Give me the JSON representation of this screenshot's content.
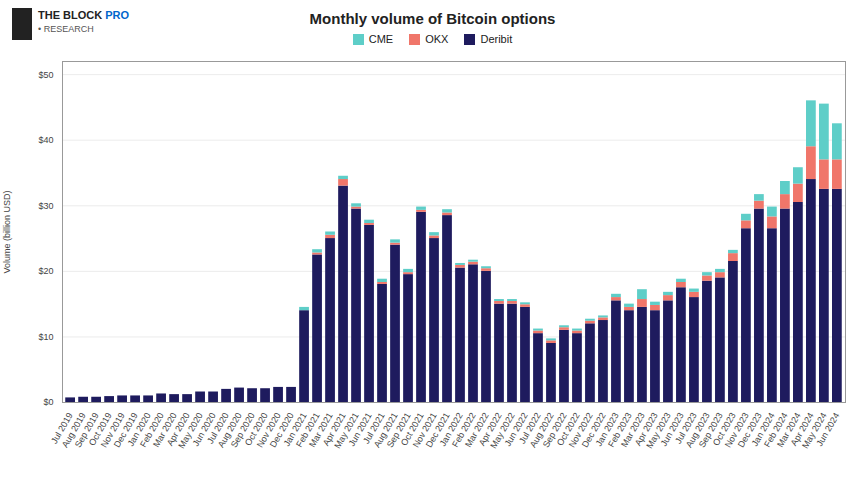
{
  "chart_data": {
    "type": "bar",
    "title": "Monthly volume of Bitcoin options",
    "ylabel": "Volume (billion USD)",
    "annotations": [
      "THE BLOCK",
      "PRO",
      "• RESEARCH"
    ],
    "stacked": true,
    "grid": true,
    "legend": "top",
    "ylim": [
      0,
      52
    ],
    "yticks": [
      {
        "value": 0,
        "label": "$0"
      },
      {
        "value": 10,
        "label": "$10"
      },
      {
        "value": 20,
        "label": "$20"
      },
      {
        "value": 30,
        "label": "$30"
      },
      {
        "value": 40,
        "label": "$40"
      },
      {
        "value": 50,
        "label": "$50"
      }
    ],
    "categories": [
      "Jul 2019",
      "Aug 2019",
      "Sep 2019",
      "Oct 2019",
      "Nov 2019",
      "Dec 2019",
      "Jan 2020",
      "Feb 2020",
      "Mar 2020",
      "Apr 2020",
      "May 2020",
      "Jun 2020",
      "Jul 2020",
      "Aug 2020",
      "Sep 2020",
      "Oct 2020",
      "Nov 2020",
      "Dec 2020",
      "Jan 2021",
      "Feb 2021",
      "Mar 2021",
      "Apr 2021",
      "May 2021",
      "Jun 2021",
      "Jul 2021",
      "Aug 2021",
      "Sep 2021",
      "Oct 2021",
      "Nov 2021",
      "Dec 2021",
      "Jan 2022",
      "Feb 2022",
      "Mar 2022",
      "Apr 2022",
      "May 2022",
      "Jun 2022",
      "Jul 2022",
      "Aug 2022",
      "Sep 2022",
      "Oct 2022",
      "Nov 2022",
      "Dec 2022",
      "Jan 2023",
      "Feb 2023",
      "Mar 2023",
      "Apr 2023",
      "May 2023",
      "Jun 2023",
      "Jul 2023",
      "Aug 2023",
      "Sep 2023",
      "Oct 2023",
      "Nov 2023",
      "Dec 2023",
      "Jan 2024",
      "Feb 2024",
      "Mar 2024",
      "Apr 2024",
      "May 2024",
      "Jun 2024"
    ],
    "series": [
      {
        "name": "Deribit",
        "color": "#1e1b5e",
        "values": [
          0.7,
          0.8,
          0.8,
          0.9,
          1.0,
          1.0,
          1.0,
          1.3,
          1.2,
          1.2,
          1.6,
          1.6,
          2.0,
          2.2,
          2.1,
          2.1,
          2.3,
          2.3,
          14.0,
          22.5,
          25.0,
          33.0,
          29.5,
          27.0,
          18.0,
          24.0,
          19.5,
          29.0,
          25.0,
          28.5,
          20.5,
          21.0,
          20.0,
          15.0,
          15.0,
          14.5,
          10.5,
          9.0,
          11.0,
          10.5,
          12.0,
          12.5,
          15.5,
          14.0,
          14.5,
          14.0,
          15.5,
          17.5,
          16.0,
          18.5,
          19.0,
          21.5,
          26.5,
          29.5,
          26.5,
          29.5,
          30.5,
          34.0,
          32.5,
          32.5
        ]
      },
      {
        "name": "OKX",
        "color": "#f0766a",
        "values": [
          0.0,
          0.0,
          0.0,
          0.0,
          0.0,
          0.0,
          0.0,
          0.0,
          0.0,
          0.0,
          0.0,
          0.0,
          0.0,
          0.0,
          0.0,
          0.0,
          0.0,
          0.0,
          0.0,
          0.3,
          0.5,
          1.0,
          0.3,
          0.3,
          0.3,
          0.3,
          0.3,
          0.3,
          0.4,
          0.4,
          0.4,
          0.4,
          0.4,
          0.4,
          0.4,
          0.4,
          0.4,
          0.4,
          0.4,
          0.4,
          0.4,
          0.4,
          0.5,
          0.5,
          1.2,
          0.8,
          0.8,
          0.8,
          0.8,
          0.8,
          0.8,
          1.2,
          1.2,
          1.2,
          1.8,
          2.2,
          2.8,
          5.0,
          4.5,
          4.5
        ]
      },
      {
        "name": "CME",
        "color": "#5ecec8",
        "values": [
          0.0,
          0.0,
          0.0,
          0.0,
          0.0,
          0.0,
          0.0,
          0.0,
          0.0,
          0.0,
          0.0,
          0.0,
          0.0,
          0.0,
          0.0,
          0.0,
          0.0,
          0.0,
          0.5,
          0.5,
          0.5,
          0.5,
          0.5,
          0.5,
          0.5,
          0.5,
          0.5,
          0.5,
          0.5,
          0.5,
          0.3,
          0.3,
          0.3,
          0.3,
          0.3,
          0.3,
          0.3,
          0.3,
          0.3,
          0.3,
          0.3,
          0.3,
          0.5,
          0.5,
          1.5,
          0.5,
          0.5,
          0.5,
          0.5,
          0.5,
          0.5,
          0.5,
          1.0,
          1.0,
          1.5,
          2.0,
          2.5,
          7.0,
          8.5,
          5.5
        ]
      }
    ]
  }
}
